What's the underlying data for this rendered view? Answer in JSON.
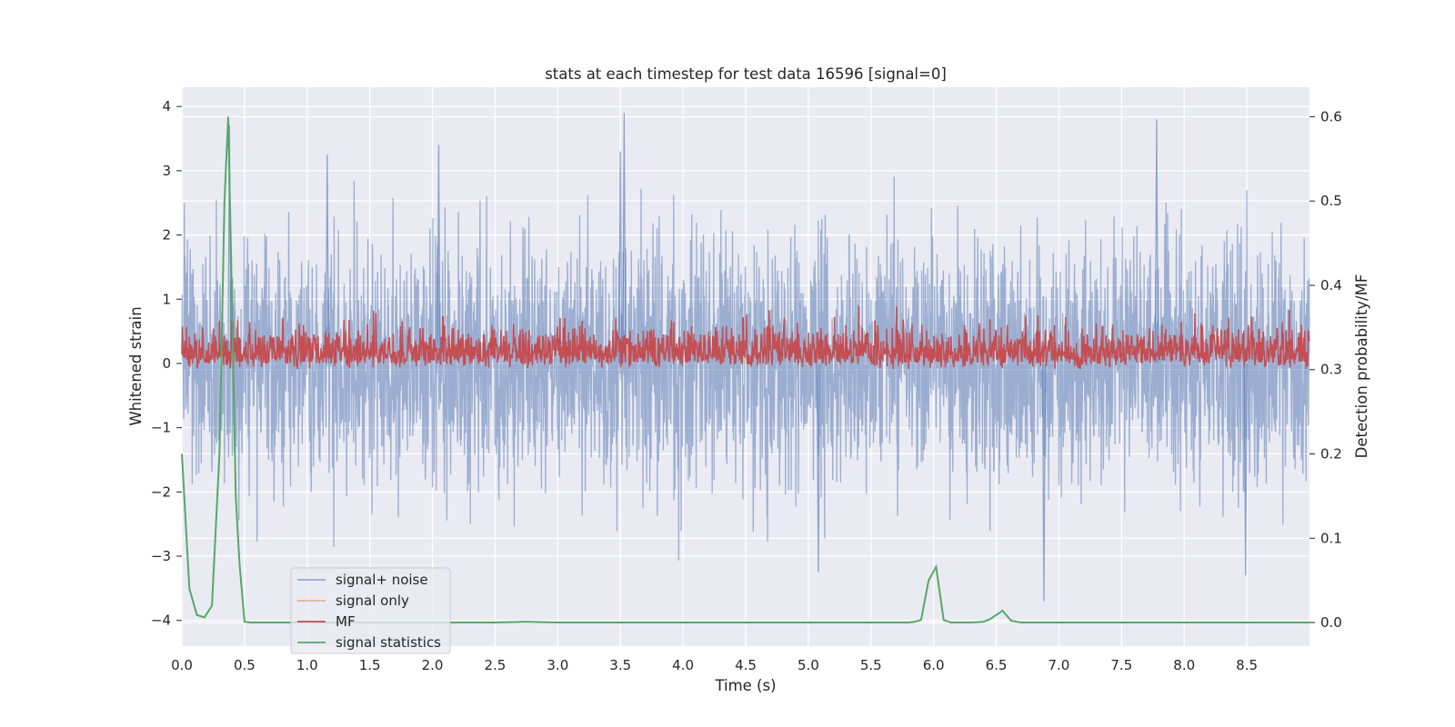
{
  "chart_data": {
    "type": "line",
    "title": "stats at each timestep for test data 16596 [signal=0]",
    "xlabel": "Time (s)",
    "ylabel": "Whitened strain",
    "y2label": "Detection probability/MF",
    "xlim": [
      0.0,
      9.0
    ],
    "ylim": [
      -4.4,
      4.3
    ],
    "y2lim": [
      -0.028,
      0.635
    ],
    "xticks": [
      "0.0",
      "0.5",
      "1.0",
      "1.5",
      "2.0",
      "2.5",
      "3.0",
      "3.5",
      "4.0",
      "4.5",
      "5.0",
      "5.5",
      "6.0",
      "6.5",
      "7.0",
      "7.5",
      "8.0",
      "8.5"
    ],
    "yticks": [
      "4",
      "3",
      "2",
      "1",
      "0",
      "−1",
      "−2",
      "−3",
      "−4"
    ],
    "y2ticks": [
      "0.6",
      "0.5",
      "0.4",
      "0.3",
      "0.2",
      "0.1",
      "0.0"
    ],
    "grid": true,
    "legend_position": "lower-left",
    "series": [
      {
        "name": "signal+ noise",
        "color": "#4c72b0",
        "axis": "left",
        "description": "dense whitened-strain noise trace, roughly between -3.7 and 3.9",
        "notable_peaks": [
          {
            "x": 3.53,
            "y": 3.9
          },
          {
            "x": 7.78,
            "y": 3.8
          },
          {
            "x": 2.05,
            "y": 3.4
          },
          {
            "x": 3.5,
            "y": 3.3
          },
          {
            "x": 1.16,
            "y": 3.25
          },
          {
            "x": 0.38,
            "y": 3.7
          },
          {
            "x": 6.88,
            "y": -3.7
          },
          {
            "x": 8.49,
            "y": -3.3
          },
          {
            "x": 5.08,
            "y": -3.25
          }
        ]
      },
      {
        "name": "signal only",
        "color": "#dd8452",
        "axis": "left",
        "description": "zero signal, not visible"
      },
      {
        "name": "MF",
        "color": "#c44e52",
        "axis": "right",
        "description": "matched-filter output fluctuating between about 0.30 and 0.38"
      },
      {
        "name": "signal statistics",
        "color": "#55a868",
        "axis": "right",
        "x": [
          0.0,
          0.06,
          0.12,
          0.18,
          0.24,
          0.3,
          0.34,
          0.37,
          0.4,
          0.43,
          0.46,
          0.5,
          0.55,
          1.0,
          2.0,
          2.5,
          2.75,
          3.0,
          4.0,
          5.0,
          5.8,
          5.85,
          5.9,
          5.96,
          6.02,
          6.08,
          6.14,
          6.2,
          6.3,
          6.4,
          6.45,
          6.55,
          6.62,
          6.7,
          7.0,
          8.0,
          9.0
        ],
        "values": [
          0.2,
          0.04,
          0.009,
          0.006,
          0.02,
          0.2,
          0.5,
          0.6,
          0.38,
          0.15,
          0.07,
          0.001,
          0.0,
          0.0,
          0.0,
          0.0,
          0.001,
          0.0,
          0.0,
          0.0,
          0.0,
          0.001,
          0.003,
          0.05,
          0.066,
          0.003,
          0.0,
          0.0,
          0.0,
          0.001,
          0.004,
          0.014,
          0.002,
          0.0,
          0.0,
          0.0,
          0.0
        ]
      }
    ]
  }
}
